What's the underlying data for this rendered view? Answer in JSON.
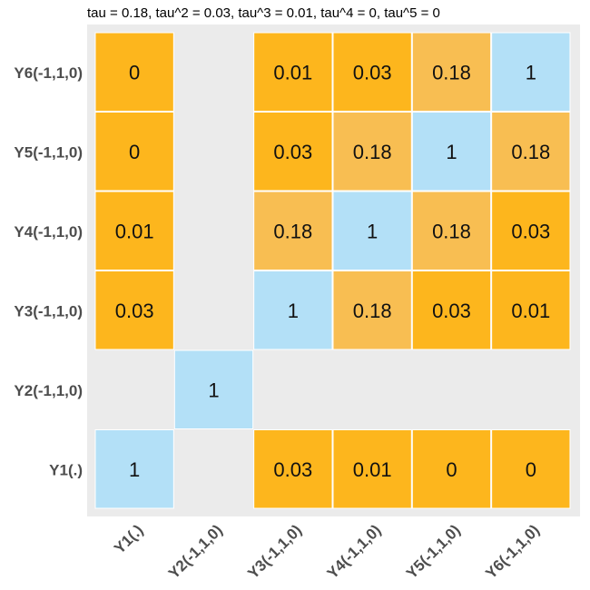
{
  "chart_data": {
    "type": "heatmap",
    "title": "tau = 0.18, tau^2 = 0.03, tau^3 = 0.01, tau^4 = 0, tau^5 = 0",
    "x_labels": [
      "Y1(.)",
      "Y2(-1,1,0)",
      "Y3(-1,1,0)",
      "Y4(-1,1,0)",
      "Y5(-1,1,0)",
      "Y6(-1,1,0)"
    ],
    "y_labels": [
      "Y1(.)",
      "Y2(-1,1,0)",
      "Y3(-1,1,0)",
      "Y4(-1,1,0)",
      "Y5(-1,1,0)",
      "Y6(-1,1,0)"
    ],
    "cells": [
      {
        "row": "Y6(-1,1,0)",
        "col": "Y1(.)",
        "label": "0",
        "value": 0
      },
      {
        "row": "Y6(-1,1,0)",
        "col": "Y3(-1,1,0)",
        "label": "0.01",
        "value": 0.01
      },
      {
        "row": "Y6(-1,1,0)",
        "col": "Y4(-1,1,0)",
        "label": "0.03",
        "value": 0.03
      },
      {
        "row": "Y6(-1,1,0)",
        "col": "Y5(-1,1,0)",
        "label": "0.18",
        "value": 0.18
      },
      {
        "row": "Y6(-1,1,0)",
        "col": "Y6(-1,1,0)",
        "label": "1",
        "value": 1
      },
      {
        "row": "Y5(-1,1,0)",
        "col": "Y1(.)",
        "label": "0",
        "value": 0
      },
      {
        "row": "Y5(-1,1,0)",
        "col": "Y3(-1,1,0)",
        "label": "0.03",
        "value": 0.03
      },
      {
        "row": "Y5(-1,1,0)",
        "col": "Y4(-1,1,0)",
        "label": "0.18",
        "value": 0.18
      },
      {
        "row": "Y5(-1,1,0)",
        "col": "Y5(-1,1,0)",
        "label": "1",
        "value": 1
      },
      {
        "row": "Y5(-1,1,0)",
        "col": "Y6(-1,1,0)",
        "label": "0.18",
        "value": 0.18
      },
      {
        "row": "Y4(-1,1,0)",
        "col": "Y1(.)",
        "label": "0.01",
        "value": 0.01
      },
      {
        "row": "Y4(-1,1,0)",
        "col": "Y3(-1,1,0)",
        "label": "0.18",
        "value": 0.18
      },
      {
        "row": "Y4(-1,1,0)",
        "col": "Y4(-1,1,0)",
        "label": "1",
        "value": 1
      },
      {
        "row": "Y4(-1,1,0)",
        "col": "Y5(-1,1,0)",
        "label": "0.18",
        "value": 0.18
      },
      {
        "row": "Y4(-1,1,0)",
        "col": "Y6(-1,1,0)",
        "label": "0.03",
        "value": 0.03
      },
      {
        "row": "Y3(-1,1,0)",
        "col": "Y1(.)",
        "label": "0.03",
        "value": 0.03
      },
      {
        "row": "Y3(-1,1,0)",
        "col": "Y3(-1,1,0)",
        "label": "1",
        "value": 1
      },
      {
        "row": "Y3(-1,1,0)",
        "col": "Y4(-1,1,0)",
        "label": "0.18",
        "value": 0.18
      },
      {
        "row": "Y3(-1,1,0)",
        "col": "Y5(-1,1,0)",
        "label": "0.03",
        "value": 0.03
      },
      {
        "row": "Y3(-1,1,0)",
        "col": "Y6(-1,1,0)",
        "label": "0.01",
        "value": 0.01
      },
      {
        "row": "Y2(-1,1,0)",
        "col": "Y2(-1,1,0)",
        "label": "1",
        "value": 1
      },
      {
        "row": "Y1(.)",
        "col": "Y1(.)",
        "label": "1",
        "value": 1
      },
      {
        "row": "Y1(.)",
        "col": "Y3(-1,1,0)",
        "label": "0.03",
        "value": 0.03
      },
      {
        "row": "Y1(.)",
        "col": "Y4(-1,1,0)",
        "label": "0.01",
        "value": 0.01
      },
      {
        "row": "Y1(.)",
        "col": "Y5(-1,1,0)",
        "label": "0",
        "value": 0
      },
      {
        "row": "Y1(.)",
        "col": "Y6(-1,1,0)",
        "label": "0",
        "value": 0
      }
    ],
    "colors": {
      "diagonal": "#b3e0f7",
      "high": "#f8be52",
      "low": "#fdb61d",
      "panel_background": "#ebebeb",
      "cell_border": "#ffffff"
    },
    "legend": "none",
    "grid": false
  }
}
